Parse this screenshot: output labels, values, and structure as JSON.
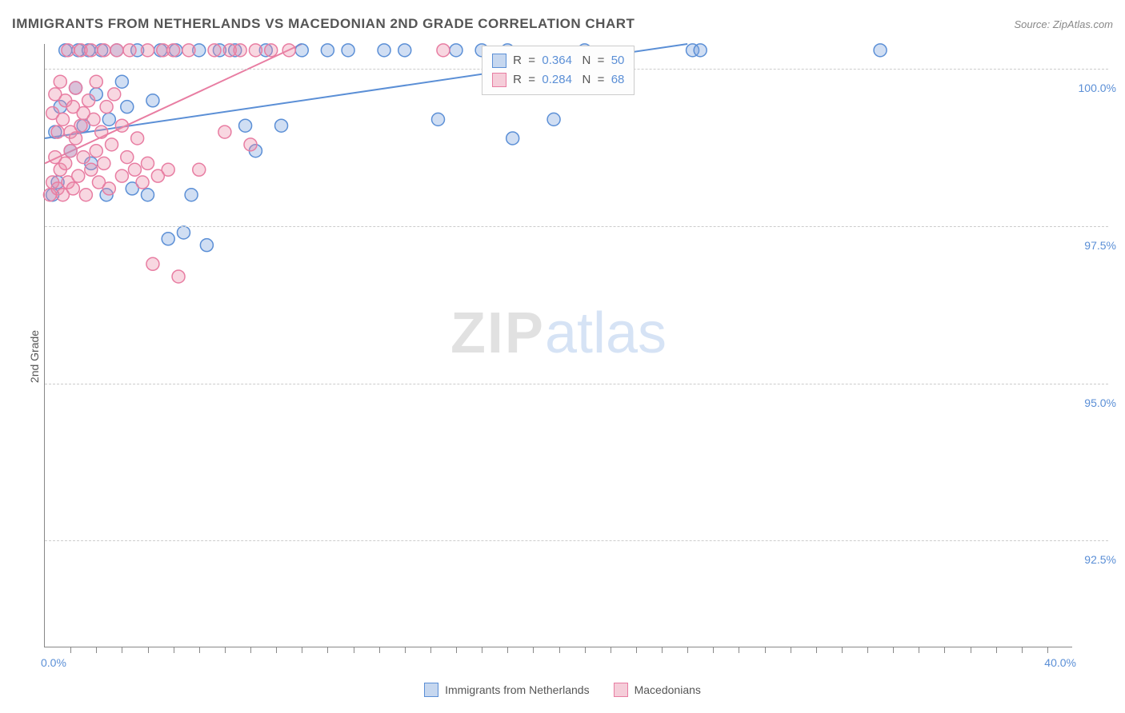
{
  "title": "IMMIGRANTS FROM NETHERLANDS VS MACEDONIAN 2ND GRADE CORRELATION CHART",
  "source": "Source: ZipAtlas.com",
  "y_axis_label": "2nd Grade",
  "watermark": {
    "part1": "ZIP",
    "part2": "atlas"
  },
  "chart": {
    "type": "scatter",
    "background_color": "#ffffff",
    "grid_color": "#cccccc",
    "axis_color": "#888888",
    "tick_label_color": "#5b8fd6",
    "label_fontsize": 14,
    "title_fontsize": 17,
    "xlim": [
      0.0,
      40.0
    ],
    "ylim": [
      90.8,
      100.4
    ],
    "x_ticks": [
      0.0,
      40.0
    ],
    "x_tick_labels": [
      "0.0%",
      "40.0%"
    ],
    "x_minor_ticks": [
      1,
      2,
      3,
      4,
      5,
      6,
      7,
      8,
      9,
      10,
      11,
      12,
      13,
      14,
      15,
      16,
      17,
      18,
      19,
      20,
      21,
      22,
      23,
      24,
      25,
      26,
      27,
      28,
      29,
      30,
      31,
      32,
      33,
      34,
      35,
      36,
      37,
      38,
      39
    ],
    "y_ticks": [
      92.5,
      95.0,
      97.5,
      100.0
    ],
    "y_tick_labels": [
      "92.5%",
      "95.0%",
      "97.5%",
      "100.0%"
    ],
    "marker_radius": 8,
    "marker_stroke_width": 1.5,
    "line_width": 2,
    "series": [
      {
        "name": "Immigrants from Netherlands",
        "fill_color": "rgba(120,160,220,0.35)",
        "stroke_color": "#5b8fd6",
        "swatch_fill": "#c6d7ef",
        "swatch_border": "#5b8fd6",
        "legend_label": "Immigrants from Netherlands",
        "R": "0.364",
        "N": "50",
        "regression": {
          "x1": 0.0,
          "y1": 98.9,
          "x2": 25.0,
          "y2": 100.4
        },
        "points": [
          [
            0.3,
            98.0
          ],
          [
            0.4,
            99.0
          ],
          [
            0.5,
            98.2
          ],
          [
            0.6,
            99.4
          ],
          [
            0.8,
            100.3
          ],
          [
            1.0,
            98.7
          ],
          [
            1.2,
            99.7
          ],
          [
            1.3,
            100.3
          ],
          [
            1.5,
            99.1
          ],
          [
            1.7,
            100.3
          ],
          [
            1.8,
            98.5
          ],
          [
            2.0,
            99.6
          ],
          [
            2.2,
            100.3
          ],
          [
            2.4,
            98.0
          ],
          [
            2.5,
            99.2
          ],
          [
            2.8,
            100.3
          ],
          [
            3.0,
            99.8
          ],
          [
            3.2,
            99.4
          ],
          [
            3.4,
            98.1
          ],
          [
            3.6,
            100.3
          ],
          [
            4.0,
            98.0
          ],
          [
            4.2,
            99.5
          ],
          [
            4.5,
            100.3
          ],
          [
            4.8,
            97.3
          ],
          [
            5.1,
            100.3
          ],
          [
            5.4,
            97.4
          ],
          [
            5.7,
            98.0
          ],
          [
            6.0,
            100.3
          ],
          [
            6.3,
            97.2
          ],
          [
            6.8,
            100.3
          ],
          [
            7.4,
            100.3
          ],
          [
            7.8,
            99.1
          ],
          [
            8.2,
            98.7
          ],
          [
            8.6,
            100.3
          ],
          [
            9.2,
            99.1
          ],
          [
            10.0,
            100.3
          ],
          [
            11.0,
            100.3
          ],
          [
            11.8,
            100.3
          ],
          [
            13.2,
            100.3
          ],
          [
            14.0,
            100.3
          ],
          [
            15.3,
            99.2
          ],
          [
            16.0,
            100.3
          ],
          [
            17.0,
            100.3
          ],
          [
            18.0,
            100.3
          ],
          [
            18.2,
            98.9
          ],
          [
            19.8,
            99.2
          ],
          [
            21.0,
            100.3
          ],
          [
            25.2,
            100.3
          ],
          [
            25.5,
            100.3
          ],
          [
            32.5,
            100.3
          ]
        ]
      },
      {
        "name": "Macedonians",
        "fill_color": "rgba(235,140,170,0.35)",
        "stroke_color": "#e87da2",
        "swatch_fill": "#f5cdd9",
        "swatch_border": "#e87da2",
        "legend_label": "Macedonians",
        "R": "0.284",
        "N": "68",
        "regression": {
          "x1": 0.0,
          "y1": 98.5,
          "x2": 10.0,
          "y2": 100.4
        },
        "points": [
          [
            0.2,
            98.0
          ],
          [
            0.3,
            98.2
          ],
          [
            0.3,
            99.3
          ],
          [
            0.4,
            98.6
          ],
          [
            0.4,
            99.6
          ],
          [
            0.5,
            98.1
          ],
          [
            0.5,
            99.0
          ],
          [
            0.6,
            98.4
          ],
          [
            0.6,
            99.8
          ],
          [
            0.7,
            98.0
          ],
          [
            0.7,
            99.2
          ],
          [
            0.8,
            98.5
          ],
          [
            0.8,
            99.5
          ],
          [
            0.9,
            100.3
          ],
          [
            0.9,
            98.2
          ],
          [
            1.0,
            99.0
          ],
          [
            1.0,
            98.7
          ],
          [
            1.1,
            99.4
          ],
          [
            1.1,
            98.1
          ],
          [
            1.2,
            98.9
          ],
          [
            1.2,
            99.7
          ],
          [
            1.3,
            98.3
          ],
          [
            1.4,
            99.1
          ],
          [
            1.4,
            100.3
          ],
          [
            1.5,
            98.6
          ],
          [
            1.5,
            99.3
          ],
          [
            1.6,
            98.0
          ],
          [
            1.7,
            99.5
          ],
          [
            1.8,
            98.4
          ],
          [
            1.8,
            100.3
          ],
          [
            1.9,
            99.2
          ],
          [
            2.0,
            98.7
          ],
          [
            2.0,
            99.8
          ],
          [
            2.1,
            98.2
          ],
          [
            2.2,
            99.0
          ],
          [
            2.3,
            98.5
          ],
          [
            2.3,
            100.3
          ],
          [
            2.4,
            99.4
          ],
          [
            2.5,
            98.1
          ],
          [
            2.6,
            98.8
          ],
          [
            2.7,
            99.6
          ],
          [
            2.8,
            100.3
          ],
          [
            3.0,
            99.1
          ],
          [
            3.0,
            98.3
          ],
          [
            3.2,
            98.6
          ],
          [
            3.3,
            100.3
          ],
          [
            3.5,
            98.4
          ],
          [
            3.6,
            98.9
          ],
          [
            3.8,
            98.2
          ],
          [
            4.0,
            100.3
          ],
          [
            4.0,
            98.5
          ],
          [
            4.2,
            96.9
          ],
          [
            4.4,
            98.3
          ],
          [
            4.6,
            100.3
          ],
          [
            4.8,
            98.4
          ],
          [
            5.0,
            100.3
          ],
          [
            5.2,
            96.7
          ],
          [
            5.6,
            100.3
          ],
          [
            6.0,
            98.4
          ],
          [
            6.6,
            100.3
          ],
          [
            7.0,
            99.0
          ],
          [
            7.2,
            100.3
          ],
          [
            7.6,
            100.3
          ],
          [
            8.0,
            98.8
          ],
          [
            8.2,
            100.3
          ],
          [
            8.8,
            100.3
          ],
          [
            9.5,
            100.3
          ],
          [
            15.5,
            100.3
          ]
        ]
      }
    ]
  },
  "stats_box": {
    "r_label": "R  =  ",
    "n_label": "   N  =  "
  }
}
